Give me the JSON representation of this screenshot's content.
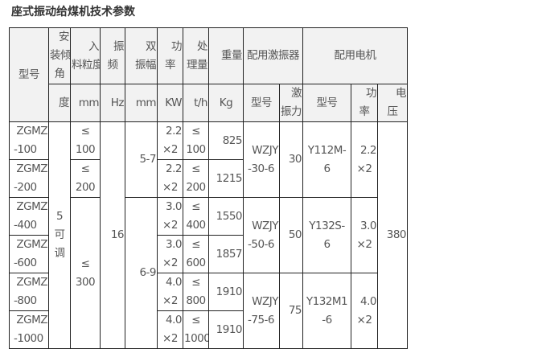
{
  "title": "座式振动给煤机技术参数",
  "header": {
    "model": "型号",
    "angle": [
      "安",
      "装倾",
      "角"
    ],
    "feed_size": [
      "入",
      "料粒度"
    ],
    "frequency": [
      "振",
      "频"
    ],
    "amplitude": [
      "双",
      "振幅"
    ],
    "power": [
      "功",
      "率"
    ],
    "capacity": [
      "处",
      "理量"
    ],
    "weight": "重量",
    "exciter": "配用激振器",
    "motor": "配用电机",
    "units": {
      "angle": "度",
      "feed_size": "mm",
      "frequency": "Hz",
      "amplitude": "mm",
      "power": "KW",
      "capacity": "t/h",
      "weight": "Kg",
      "exciter_model": "型号",
      "exciter_force": [
        "激",
        "振力"
      ],
      "motor_model": "型号",
      "motor_power": [
        "功",
        "率"
      ],
      "voltage": [
        "电",
        "压"
      ]
    }
  },
  "rows": [
    {
      "model": [
        "ZGMZ",
        "-100"
      ],
      "power": [
        "2.2",
        "×2"
      ],
      "capacity": [
        "≤",
        "100"
      ],
      "weight": "825"
    },
    {
      "model": [
        "ZGMZ",
        "-200"
      ],
      "power": [
        "2.2",
        "×2"
      ],
      "capacity": [
        "≤",
        "200"
      ],
      "weight": "1215"
    },
    {
      "model": [
        "ZGMZ",
        "-400"
      ],
      "power": [
        "3.0",
        "×2"
      ],
      "capacity": [
        "≤",
        "400"
      ],
      "weight": "1550"
    },
    {
      "model": [
        "ZGMZ",
        "-600"
      ],
      "power": [
        "3.0",
        "×2"
      ],
      "capacity": [
        "≤",
        "600"
      ],
      "weight": "1857"
    },
    {
      "model": [
        "ZGMZ",
        "-800"
      ],
      "power": [
        "4.0",
        "×2"
      ],
      "capacity": [
        "≤",
        "800"
      ],
      "weight": "1910"
    },
    {
      "model": [
        "ZGMZ",
        "-1000"
      ],
      "power": [
        "4.0",
        "×2"
      ],
      "capacity": [
        "≤",
        "1000"
      ],
      "weight": "1910"
    }
  ],
  "angle": [
    "5",
    "可",
    "调"
  ],
  "feed_size": [
    [
      "≤",
      "100"
    ],
    [
      "≤",
      "200"
    ],
    [
      "≤",
      "300"
    ]
  ],
  "frequency": "16",
  "amplitude": [
    "5-7",
    "6-9"
  ],
  "exciters": [
    {
      "model": [
        "WZJY",
        "-30-6"
      ],
      "force": "30",
      "motor": [
        "Y112M-",
        "6"
      ],
      "motor_power": [
        "2.2",
        "×2"
      ]
    },
    {
      "model": [
        "WZJY",
        "-50-6"
      ],
      "force": "50",
      "motor": [
        "Y132S-",
        "6"
      ],
      "motor_power": [
        "3.0",
        "×2"
      ]
    },
    {
      "model": [
        "WZJY",
        "-75-6"
      ],
      "force": "75",
      "motor": [
        "Y132M1",
        "-6"
      ],
      "motor_power": [
        "4.0",
        "×2"
      ]
    }
  ],
  "voltage": "380"
}
